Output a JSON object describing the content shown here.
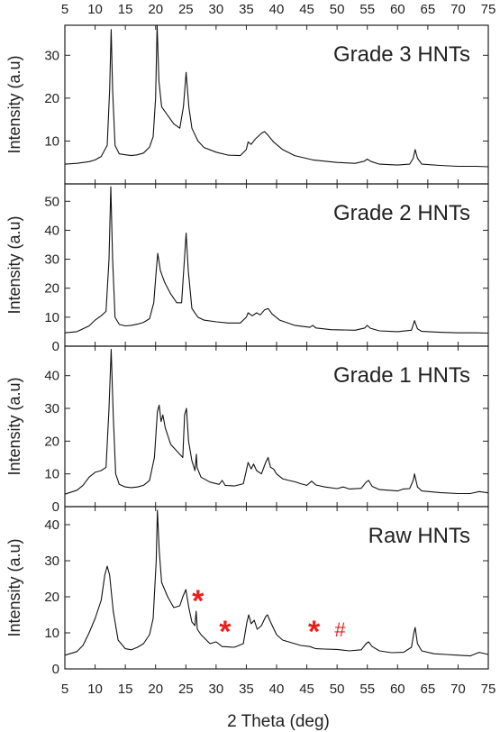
{
  "chart_data": {
    "type": "line",
    "layout": "stacked-panels",
    "xlabel": "2 Theta (deg)",
    "xlim": [
      5,
      75
    ],
    "xticks": [
      5,
      10,
      15,
      20,
      25,
      30,
      35,
      40,
      45,
      50,
      55,
      60,
      65,
      70,
      75
    ],
    "line_color": "#111111",
    "marker_color": "#e8201c",
    "panels": [
      {
        "label": "Grade 3 HNTs",
        "ylabel": "Intensity (a.u)",
        "ylim": [
          0,
          37
        ],
        "yticks": [
          10,
          20,
          30
        ],
        "points": [
          [
            5,
            4.6
          ],
          [
            7,
            4.8
          ],
          [
            9,
            5.2
          ],
          [
            10,
            5.6
          ],
          [
            11,
            6.4
          ],
          [
            12,
            9
          ],
          [
            12.4,
            22
          ],
          [
            12.65,
            36
          ],
          [
            12.9,
            22
          ],
          [
            13.3,
            9
          ],
          [
            14,
            7
          ],
          [
            15,
            6.8
          ],
          [
            16,
            6.6
          ],
          [
            17,
            6.8
          ],
          [
            18,
            7.2
          ],
          [
            19,
            8.6
          ],
          [
            19.6,
            11
          ],
          [
            20,
            20
          ],
          [
            20.25,
            37
          ],
          [
            20.55,
            24
          ],
          [
            21,
            18
          ],
          [
            22,
            16
          ],
          [
            23,
            14
          ],
          [
            24,
            13
          ],
          [
            24.6,
            18
          ],
          [
            25.05,
            26
          ],
          [
            25.5,
            18
          ],
          [
            26,
            13
          ],
          [
            27,
            10
          ],
          [
            28,
            8.5
          ],
          [
            30,
            7.4
          ],
          [
            32,
            6.7
          ],
          [
            34,
            6.6
          ],
          [
            35,
            8
          ],
          [
            35.3,
            9.8
          ],
          [
            35.8,
            9.2
          ],
          [
            36.5,
            10.5
          ],
          [
            37.5,
            11.8
          ],
          [
            38,
            12.2
          ],
          [
            38.5,
            11.5
          ],
          [
            39.5,
            9.8
          ],
          [
            41,
            8
          ],
          [
            43,
            6.6
          ],
          [
            46,
            5.6
          ],
          [
            50,
            5
          ],
          [
            53,
            4.8
          ],
          [
            54.5,
            5.3
          ],
          [
            55,
            5.8
          ],
          [
            55.5,
            5.3
          ],
          [
            57,
            4.6
          ],
          [
            60,
            4.4
          ],
          [
            62,
            4.6
          ],
          [
            62.6,
            6
          ],
          [
            62.9,
            8
          ],
          [
            63.3,
            6
          ],
          [
            64,
            4.6
          ],
          [
            67,
            4.3
          ],
          [
            70,
            4.1
          ],
          [
            73,
            4.1
          ],
          [
            75,
            4
          ]
        ],
        "markers": []
      },
      {
        "label": "Grade 2 HNTs",
        "ylabel": "Intensity (a.u)",
        "ylim": [
          0,
          56
        ],
        "yticks": [
          0,
          10,
          20,
          30,
          40,
          50
        ],
        "points": [
          [
            5,
            4.6
          ],
          [
            7,
            5
          ],
          [
            9,
            7
          ],
          [
            10,
            9
          ],
          [
            11,
            10.5
          ],
          [
            11.8,
            12
          ],
          [
            12.3,
            30
          ],
          [
            12.6,
            55
          ],
          [
            12.9,
            30
          ],
          [
            13.3,
            10
          ],
          [
            14,
            7.5
          ],
          [
            15,
            7
          ],
          [
            16,
            7.2
          ],
          [
            17,
            7.6
          ],
          [
            18,
            8.2
          ],
          [
            19,
            9.5
          ],
          [
            19.7,
            15
          ],
          [
            20.1,
            26
          ],
          [
            20.35,
            32
          ],
          [
            20.8,
            26
          ],
          [
            21.5,
            22
          ],
          [
            22.5,
            18
          ],
          [
            23.5,
            15
          ],
          [
            24.3,
            15
          ],
          [
            24.7,
            28
          ],
          [
            25.05,
            39
          ],
          [
            25.4,
            26
          ],
          [
            26,
            13
          ],
          [
            27,
            10
          ],
          [
            28,
            9
          ],
          [
            30,
            8.4
          ],
          [
            32,
            8
          ],
          [
            34,
            8
          ],
          [
            35,
            10
          ],
          [
            35.3,
            11.5
          ],
          [
            36,
            10.5
          ],
          [
            36.7,
            11.5
          ],
          [
            37.3,
            10.8
          ],
          [
            38,
            12.5
          ],
          [
            38.6,
            13
          ],
          [
            39.3,
            11
          ],
          [
            40.5,
            9
          ],
          [
            43,
            7.2
          ],
          [
            45.5,
            6.5
          ],
          [
            46,
            7.2
          ],
          [
            46.5,
            6.3
          ],
          [
            49,
            5.7
          ],
          [
            53,
            5.5
          ],
          [
            54.6,
            6.3
          ],
          [
            55,
            7.2
          ],
          [
            55.5,
            6.2
          ],
          [
            57,
            5.3
          ],
          [
            60,
            5
          ],
          [
            62.3,
            5.5
          ],
          [
            62.8,
            8.8
          ],
          [
            63.3,
            6
          ],
          [
            64,
            5.1
          ],
          [
            67,
            4.8
          ],
          [
            70,
            4.6
          ],
          [
            73,
            4.6
          ],
          [
            75,
            4.5
          ]
        ],
        "markers": []
      },
      {
        "label": "Grade 1 HNTs",
        "ylabel": "Intensity (a.u)",
        "ylim": [
          0,
          49
        ],
        "yticks": [
          0,
          10,
          20,
          30,
          40
        ],
        "points": [
          [
            5,
            3.8
          ],
          [
            7,
            5
          ],
          [
            8,
            6.5
          ],
          [
            9,
            9
          ],
          [
            10,
            10.5
          ],
          [
            11,
            11
          ],
          [
            11.8,
            12
          ],
          [
            12.3,
            30
          ],
          [
            12.65,
            48
          ],
          [
            13,
            28
          ],
          [
            13.4,
            10
          ],
          [
            14,
            6.8
          ],
          [
            15,
            6
          ],
          [
            16,
            5.8
          ],
          [
            17,
            6
          ],
          [
            18,
            6.5
          ],
          [
            19,
            8
          ],
          [
            19.8,
            15
          ],
          [
            20.3,
            29
          ],
          [
            20.6,
            31
          ],
          [
            20.9,
            26
          ],
          [
            21.2,
            28
          ],
          [
            21.6,
            24
          ],
          [
            22.5,
            19
          ],
          [
            23.5,
            17
          ],
          [
            24.5,
            15
          ],
          [
            24.8,
            28
          ],
          [
            25.1,
            30
          ],
          [
            25.45,
            20
          ],
          [
            26,
            14
          ],
          [
            26.5,
            11
          ],
          [
            26.75,
            16
          ],
          [
            26.85,
            12
          ],
          [
            27.5,
            9
          ],
          [
            29,
            7.5
          ],
          [
            30.5,
            6.8
          ],
          [
            31,
            8
          ],
          [
            31.5,
            6.5
          ],
          [
            33,
            6.3
          ],
          [
            34.5,
            7
          ],
          [
            35,
            11
          ],
          [
            35.3,
            13.5
          ],
          [
            35.8,
            11.5
          ],
          [
            36.2,
            13
          ],
          [
            36.7,
            11
          ],
          [
            37.5,
            10
          ],
          [
            38.2,
            13.5
          ],
          [
            38.6,
            15
          ],
          [
            39,
            12
          ],
          [
            39.5,
            11.5
          ],
          [
            40,
            10
          ],
          [
            41,
            8.5
          ],
          [
            42,
            8
          ],
          [
            43,
            7.6
          ],
          [
            44,
            7
          ],
          [
            45,
            6.5
          ],
          [
            45.8,
            7.8
          ],
          [
            46.5,
            6.6
          ],
          [
            48,
            6
          ],
          [
            50,
            5.5
          ],
          [
            51,
            6
          ],
          [
            52,
            5.4
          ],
          [
            54,
            5.6
          ],
          [
            54.8,
            7.5
          ],
          [
            55.2,
            8
          ],
          [
            55.8,
            6.2
          ],
          [
            57,
            5.2
          ],
          [
            60,
            4.8
          ],
          [
            61,
            5.4
          ],
          [
            62,
            5.5
          ],
          [
            62.6,
            8
          ],
          [
            62.8,
            10
          ],
          [
            63.3,
            6
          ],
          [
            64,
            4.8
          ],
          [
            67,
            4.3
          ],
          [
            70,
            4
          ],
          [
            72,
            4
          ],
          [
            73.5,
            4.6
          ],
          [
            75,
            4.2
          ]
        ],
        "markers": []
      },
      {
        "label": "Raw HNTs",
        "ylabel": "Intensity (a.u)",
        "ylim": [
          0,
          45
        ],
        "yticks": [
          0,
          10,
          20,
          30,
          40
        ],
        "points": [
          [
            5,
            3.8
          ],
          [
            7,
            4.8
          ],
          [
            8,
            6.5
          ],
          [
            9,
            10
          ],
          [
            10,
            14
          ],
          [
            11,
            19
          ],
          [
            11.6,
            26
          ],
          [
            12,
            28.5
          ],
          [
            12.4,
            26
          ],
          [
            13,
            16
          ],
          [
            13.8,
            8
          ],
          [
            15,
            5.6
          ],
          [
            16,
            5.3
          ],
          [
            17,
            6
          ],
          [
            18,
            7
          ],
          [
            19,
            9.5
          ],
          [
            19.6,
            14
          ],
          [
            20.1,
            30
          ],
          [
            20.3,
            44
          ],
          [
            20.6,
            33
          ],
          [
            21,
            24
          ],
          [
            22,
            20
          ],
          [
            23,
            17
          ],
          [
            24,
            17.5
          ],
          [
            24.5,
            20
          ],
          [
            25,
            22
          ],
          [
            25.5,
            17
          ],
          [
            26,
            13
          ],
          [
            26.5,
            12
          ],
          [
            26.7,
            16
          ],
          [
            26.9,
            11
          ],
          [
            27.5,
            9.5
          ],
          [
            29,
            7
          ],
          [
            30,
            7.5
          ],
          [
            31,
            6.2
          ],
          [
            33,
            6
          ],
          [
            34.5,
            7
          ],
          [
            35.1,
            13
          ],
          [
            35.4,
            15
          ],
          [
            35.8,
            12.5
          ],
          [
            36.3,
            13.5
          ],
          [
            36.8,
            11
          ],
          [
            37.5,
            12
          ],
          [
            38.2,
            14.5
          ],
          [
            38.5,
            15
          ],
          [
            39,
            13
          ],
          [
            40,
            9.5
          ],
          [
            41,
            8
          ],
          [
            43,
            7
          ],
          [
            44,
            6.5
          ],
          [
            45.5,
            6.2
          ],
          [
            46.5,
            5.6
          ],
          [
            48,
            5.5
          ],
          [
            50,
            5.4
          ],
          [
            52,
            5
          ],
          [
            54,
            5.3
          ],
          [
            54.8,
            7
          ],
          [
            55.2,
            7.5
          ],
          [
            55.8,
            6.2
          ],
          [
            57,
            5
          ],
          [
            59,
            4.5
          ],
          [
            61,
            4.6
          ],
          [
            62.3,
            6
          ],
          [
            62.7,
            10
          ],
          [
            62.9,
            11.5
          ],
          [
            63.3,
            7
          ],
          [
            64,
            5
          ],
          [
            66,
            4.2
          ],
          [
            68,
            4
          ],
          [
            70,
            3.8
          ],
          [
            72,
            3.6
          ],
          [
            73.5,
            4.6
          ],
          [
            75,
            4
          ]
        ],
        "markers": [
          {
            "symbol": "*",
            "x": 27,
            "y": 19
          },
          {
            "symbol": "*",
            "x": 31.5,
            "y": 10.5
          },
          {
            "symbol": "*",
            "x": 46.2,
            "y": 10.5
          },
          {
            "symbol": "#",
            "x": 50.5,
            "y": 10.5
          }
        ]
      }
    ]
  }
}
